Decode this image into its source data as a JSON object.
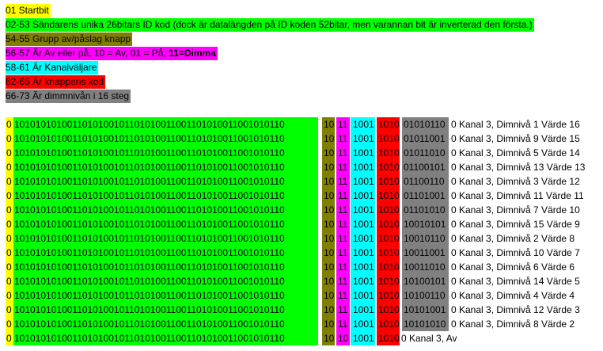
{
  "legend": [
    {
      "text": "01 Startbit",
      "color": "#ffff00"
    },
    {
      "text": "02-53 Sändarens unika 26bitars  ID kod (dock är datalängden på ID koden 52bitar, men varannan bit är inverterad den första.)",
      "color": "#00ff00"
    },
    {
      "text": "54-55 Grupp av/påslag knapp",
      "color": "#808000"
    },
    {
      "text": "56-57 Är Av eller på, 10 = Av, 01  = På, ",
      "bold_suffix": "11=Dimma",
      "color": "#ff00ff"
    },
    {
      "text": "58-61 Är Kanalväljare",
      "color": "#00ffff"
    },
    {
      "text": "62-65 Är knappens kod",
      "color": "#ff0000"
    },
    {
      "text": "66-73 Är dimmnivån i 16  steg",
      "color": "#808080"
    }
  ],
  "rows": [
    {
      "start": "0",
      "id": "1010101010011010100101101010011001101010011001010110",
      "group": "10",
      "action": "11",
      "channel": "1001",
      "key": "1010",
      "dim": "01010110",
      "desc": "0  Kanal 3, Dimnivå 1 Värde 16"
    },
    {
      "start": "0",
      "id": "1010101010011010100101101010011001101010011001010110",
      "group": "10",
      "action": "11",
      "channel": "1001",
      "key": "1010",
      "dim": "01011001",
      "desc": "0  Kanal 3, Dimnivå 9 Värde 15"
    },
    {
      "start": "0",
      "id": "1010101010011010100101101010011001101010011001010110",
      "group": "10",
      "action": "11",
      "channel": "1001",
      "key": "1010",
      "dim": "01011010",
      "desc": "0  Kanal 3, Dimnivå 5 Värde 14"
    },
    {
      "start": "0",
      "id": "1010101010011010100101101010011001101010011001010110",
      "group": "10",
      "action": "11",
      "channel": "1001",
      "key": "1010",
      "dim": "01100101",
      "desc": "0  Kanal 3, Dimnivå 13 Värde 13"
    },
    {
      "start": "0",
      "id": "1010101010011010100101101010011001101010011001010110",
      "group": "10",
      "action": "11",
      "channel": "1001",
      "key": "1010",
      "dim": "01100110",
      "desc": "0  Kanal 3, Dimnivå 3 Värde 12"
    },
    {
      "start": "0",
      "id": "1010101010011010100101101010011001101010011001010110",
      "group": "10",
      "action": "11",
      "channel": "1001",
      "key": "1010",
      "dim": "01101001",
      "desc": "0  Kanal 3, Dimnivå 11 Värde 11"
    },
    {
      "start": "0",
      "id": "1010101010011010100101101010011001101010011001010110",
      "group": "10",
      "action": "11",
      "channel": "1001",
      "key": "1010",
      "dim": "01101010",
      "desc": "0  Kanal 3, Dimnivå 7 Värde 10"
    },
    {
      "start": "0",
      "id": "1010101010011010100101101010011001101010011001010110",
      "group": "10",
      "action": "11",
      "channel": "1001",
      "key": "1010",
      "dim": "10010101",
      "desc": "0  Kanal 3, Dimnivå 15 Värde 9"
    },
    {
      "start": "0",
      "id": "1010101010011010100101101010011001101010011001010110",
      "group": "10",
      "action": "11",
      "channel": "1001",
      "key": "1010",
      "dim": "10010110",
      "desc": "0  Kanal 3, Dimnivå 2 Värde 8"
    },
    {
      "start": "0",
      "id": "1010101010011010100101101010011001101010011001010110",
      "group": "10",
      "action": "11",
      "channel": "1001",
      "key": "1010",
      "dim": "10011001",
      "desc": "0  Kanal 3, Dimnivå 10 Värde 7"
    },
    {
      "start": "0",
      "id": "1010101010011010100101101010011001101010011001010110",
      "group": "10",
      "action": "11",
      "channel": "1001",
      "key": "1010",
      "dim": "10011010",
      "desc": "0  Kanal 3, Dimnivå 6 Värde 6"
    },
    {
      "start": "0",
      "id": "1010101010011010100101101010011001101010011001010110",
      "group": "10",
      "action": "11",
      "channel": "1001",
      "key": "1010",
      "dim": "10100101",
      "desc": "0  Kanal 3, Dimnivå 14 Värde 5"
    },
    {
      "start": "0",
      "id": "1010101010011010100101101010011001101010011001010110",
      "group": "10",
      "action": "11",
      "channel": "1001",
      "key": "1010",
      "dim": "10100110",
      "desc": "0  Kanal 3, Dimnivå 4 Värde 4"
    },
    {
      "start": "0",
      "id": "1010101010011010100101101010011001101010011001010110",
      "group": "10",
      "action": "11",
      "channel": "1001",
      "key": "1010",
      "dim": "10101001",
      "desc": "0  Kanal 3, Dimnivå 12 Värde 3"
    },
    {
      "start": "0",
      "id": "1010101010011010100101101010011001101010011001010110",
      "group": "10",
      "action": "11",
      "channel": "1001",
      "key": "1010",
      "dim": "10101010",
      "desc": "0  Kanal 3, Dimnivå 8 Värde 2"
    },
    {
      "start": "0",
      "id": "1010101010011010100101101010011001101010011001010110",
      "group": "10",
      "action": "10",
      "channel": "1001",
      "key": "1010",
      "dim": "",
      "desc": "0  Kanal 3,  Av"
    }
  ]
}
